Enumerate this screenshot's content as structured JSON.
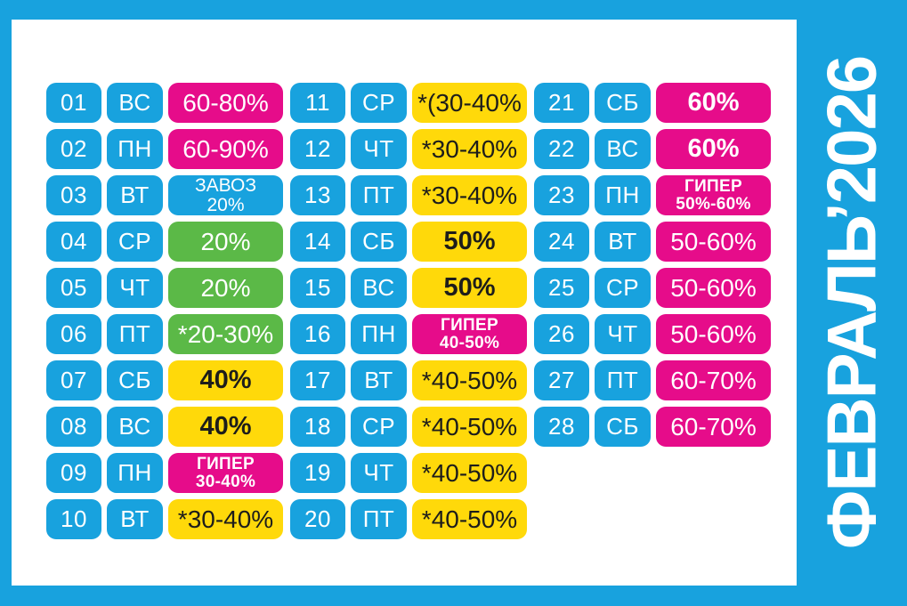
{
  "title": {
    "text": "ФЕВРАЛЬ’2026"
  },
  "colors": {
    "cyan": "#18A2DE",
    "magenta": "#E60C8A",
    "green": "#5BB947",
    "yellow": "#FFD90A",
    "dark": "#1D1D1B",
    "page": "#FFFFFF"
  },
  "calendar": {
    "columns": [
      {
        "entries": [
          {
            "day": "01",
            "weekday": "ВС",
            "lines": [
              "60-80%"
            ],
            "color": "magenta",
            "bold": false
          },
          {
            "day": "02",
            "weekday": "ПН",
            "lines": [
              "60-90%"
            ],
            "color": "magenta",
            "bold": false
          },
          {
            "day": "03",
            "weekday": "ВТ",
            "lines": [
              "ЗАВОЗ",
              "20%"
            ],
            "color": "cyan",
            "bold": false
          },
          {
            "day": "04",
            "weekday": "СР",
            "lines": [
              "20%"
            ],
            "color": "green",
            "bold": false
          },
          {
            "day": "05",
            "weekday": "ЧТ",
            "lines": [
              "20%"
            ],
            "color": "green",
            "bold": false
          },
          {
            "day": "06",
            "weekday": "ПТ",
            "lines": [
              "*20-30%"
            ],
            "color": "green",
            "bold": false
          },
          {
            "day": "07",
            "weekday": "СБ",
            "lines": [
              "40%"
            ],
            "color": "yellow",
            "bold": true
          },
          {
            "day": "08",
            "weekday": "ВС",
            "lines": [
              "40%"
            ],
            "color": "yellow",
            "bold": true
          },
          {
            "day": "09",
            "weekday": "ПН",
            "lines": [
              "ГИПЕР",
              "30-40%"
            ],
            "color": "magenta",
            "bold": true
          },
          {
            "day": "10",
            "weekday": "ВТ",
            "lines": [
              "*30-40%"
            ],
            "color": "yellow",
            "bold": false
          }
        ]
      },
      {
        "entries": [
          {
            "day": "11",
            "weekday": "СР",
            "lines": [
              "*(30-40%"
            ],
            "color": "yellow",
            "bold": false
          },
          {
            "day": "12",
            "weekday": "ЧТ",
            "lines": [
              "*30-40%"
            ],
            "color": "yellow",
            "bold": false
          },
          {
            "day": "13",
            "weekday": "ПТ",
            "lines": [
              "*30-40%"
            ],
            "color": "yellow",
            "bold": false
          },
          {
            "day": "14",
            "weekday": "СБ",
            "lines": [
              "50%"
            ],
            "color": "yellow",
            "bold": true
          },
          {
            "day": "15",
            "weekday": "ВС",
            "lines": [
              "50%"
            ],
            "color": "yellow",
            "bold": true
          },
          {
            "day": "16",
            "weekday": "ПН",
            "lines": [
              "ГИПЕР",
              "40-50%"
            ],
            "color": "magenta",
            "bold": true
          },
          {
            "day": "17",
            "weekday": "ВТ",
            "lines": [
              "*40-50%"
            ],
            "color": "yellow",
            "bold": false
          },
          {
            "day": "18",
            "weekday": "СР",
            "lines": [
              "*40-50%"
            ],
            "color": "yellow",
            "bold": false
          },
          {
            "day": "19",
            "weekday": "ЧТ",
            "lines": [
              "*40-50%"
            ],
            "color": "yellow",
            "bold": false
          },
          {
            "day": "20",
            "weekday": "ПТ",
            "lines": [
              "*40-50%"
            ],
            "color": "yellow",
            "bold": false
          }
        ]
      },
      {
        "entries": [
          {
            "day": "21",
            "weekday": "СБ",
            "lines": [
              "60%"
            ],
            "color": "magenta",
            "bold": true
          },
          {
            "day": "22",
            "weekday": "ВС",
            "lines": [
              "60%"
            ],
            "color": "magenta",
            "bold": true
          },
          {
            "day": "23",
            "weekday": "ПН",
            "lines": [
              "ГИПЕР",
              "50%-60%"
            ],
            "color": "magenta",
            "bold": true
          },
          {
            "day": "24",
            "weekday": "ВТ",
            "lines": [
              "50-60%"
            ],
            "color": "magenta",
            "bold": false
          },
          {
            "day": "25",
            "weekday": "СР",
            "lines": [
              "50-60%"
            ],
            "color": "magenta",
            "bold": false
          },
          {
            "day": "26",
            "weekday": "ЧТ",
            "lines": [
              "50-60%"
            ],
            "color": "magenta",
            "bold": false
          },
          {
            "day": "27",
            "weekday": "ПТ",
            "lines": [
              "60-70%"
            ],
            "color": "magenta",
            "bold": false
          },
          {
            "day": "28",
            "weekday": "СБ",
            "lines": [
              "60-70%"
            ],
            "color": "magenta",
            "bold": false
          }
        ]
      }
    ]
  }
}
